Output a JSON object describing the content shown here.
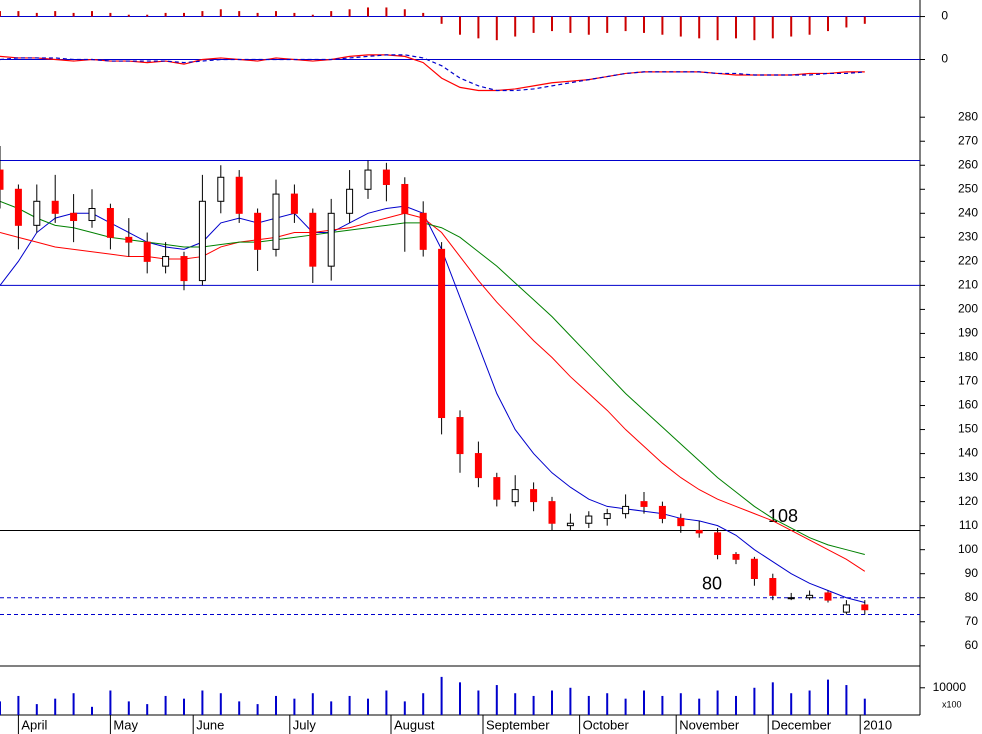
{
  "chart_data": [
    {
      "type": "bar",
      "color": "#cc0000",
      "zero_color": "#0000cc",
      "ylim": [
        -14,
        8
      ],
      "yticks": [
        0
      ],
      "values": [
        3,
        3,
        2,
        3,
        2,
        3,
        2,
        1,
        1,
        2,
        2,
        3,
        4,
        3,
        2,
        3,
        2,
        1,
        3,
        4,
        5,
        5,
        4,
        2,
        -4,
        -10,
        -12,
        -13,
        -11,
        -9,
        -8,
        -9,
        -10,
        -9,
        -8,
        -9,
        -10,
        -11,
        -12,
        -13,
        -12,
        -13,
        -12,
        -11,
        -10,
        -8,
        -6,
        -4
      ]
    },
    {
      "type": "line",
      "zero_color": "#0000cc",
      "ylim": [
        -30,
        10
      ],
      "yticks": [
        0
      ],
      "series": [
        {
          "color": "#ff0000",
          "dashed": false,
          "values": [
            2,
            1,
            1,
            0,
            -1,
            0,
            -1,
            -1,
            -2,
            -1,
            -3,
            0,
            1,
            0,
            -1,
            1,
            0,
            -1,
            0,
            2,
            3,
            3,
            2,
            -2,
            -12,
            -18,
            -20,
            -20,
            -19,
            -17,
            -15,
            -14,
            -13,
            -11,
            -9,
            -8,
            -8,
            -8,
            -8,
            -9,
            -10,
            -10,
            -10,
            -10,
            -9,
            -9,
            -8,
            -8
          ]
        },
        {
          "color": "#0000cc",
          "dashed": true,
          "values": [
            0,
            1,
            1,
            1,
            0,
            0,
            -1,
            -1,
            -1,
            -1,
            -2,
            -1,
            0,
            0,
            0,
            0,
            0,
            0,
            0,
            1,
            2,
            3,
            3,
            1,
            -4,
            -12,
            -17,
            -20,
            -20,
            -19,
            -17,
            -15,
            -13,
            -11,
            -9,
            -8,
            -8,
            -8,
            -8,
            -9,
            -9,
            -10,
            -10,
            -10,
            -10,
            -9,
            -9,
            -8
          ]
        }
      ]
    },
    {
      "type": "candlestick",
      "up_color": "#ffffff",
      "down_color": "#ff0000",
      "ylim": [
        52,
        283
      ],
      "yticks": [
        60,
        70,
        80,
        90,
        100,
        110,
        120,
        130,
        140,
        150,
        160,
        170,
        180,
        190,
        200,
        210,
        220,
        230,
        240,
        250,
        260,
        270,
        280
      ],
      "xlim": [
        0,
        200
      ],
      "xticks": [
        {
          "value": 4,
          "label": "April"
        },
        {
          "value": 24,
          "label": "May"
        },
        {
          "value": 42,
          "label": "June"
        },
        {
          "value": 63,
          "label": "July"
        },
        {
          "value": 85,
          "label": "August"
        },
        {
          "value": 105,
          "label": "September"
        },
        {
          "value": 126,
          "label": "October"
        },
        {
          "value": 147,
          "label": "November"
        },
        {
          "value": 167,
          "label": "December"
        },
        {
          "value": 187,
          "label": "2010"
        }
      ],
      "x": [
        0,
        4,
        8,
        12,
        16,
        20,
        24,
        28,
        32,
        36,
        40,
        44,
        48,
        52,
        56,
        60,
        64,
        68,
        72,
        76,
        80,
        84,
        88,
        92,
        96,
        100,
        104,
        108,
        112,
        116,
        120,
        124,
        128,
        132,
        136,
        140,
        144,
        148,
        152,
        156,
        160,
        164,
        168,
        172,
        176,
        180,
        184,
        188
      ],
      "open": [
        258,
        250,
        235,
        245,
        240,
        237,
        242,
        230,
        228,
        218,
        222,
        212,
        245,
        255,
        240,
        225,
        248,
        240,
        218,
        240,
        250,
        258,
        252,
        240,
        225,
        155,
        140,
        130,
        120,
        125,
        120,
        110,
        111,
        113,
        115,
        120,
        118,
        113,
        108,
        107,
        98,
        96,
        88,
        80,
        80,
        82,
        74,
        77
      ],
      "high": [
        268,
        252,
        252,
        256,
        248,
        250,
        244,
        238,
        232,
        228,
        224,
        256,
        260,
        258,
        242,
        254,
        252,
        242,
        246,
        258,
        262,
        261,
        255,
        245,
        228,
        158,
        145,
        132,
        131,
        128,
        122,
        115,
        116,
        117,
        123,
        124,
        120,
        115,
        112,
        109,
        99,
        97,
        90,
        82,
        83,
        83,
        79,
        79
      ],
      "low": [
        242,
        225,
        232,
        236,
        228,
        234,
        225,
        222,
        215,
        215,
        208,
        210,
        240,
        236,
        216,
        222,
        236,
        211,
        212,
        236,
        246,
        245,
        224,
        222,
        148,
        132,
        126,
        118,
        118,
        116,
        108,
        108,
        109,
        110,
        113,
        115,
        111,
        107,
        105,
        96,
        94,
        85,
        79,
        79,
        79,
        78,
        73,
        73
      ],
      "close": [
        250,
        235,
        245,
        240,
        237,
        242,
        230,
        228,
        220,
        222,
        212,
        245,
        255,
        240,
        225,
        248,
        240,
        218,
        240,
        250,
        258,
        252,
        240,
        225,
        155,
        140,
        130,
        121,
        125,
        120,
        111,
        111,
        114,
        115,
        118,
        118,
        113,
        110,
        107,
        98,
        96,
        88,
        81,
        80,
        81,
        79,
        77,
        75
      ],
      "averages": [
        {
          "color": "#0000cc",
          "values": [
            210,
            220,
            232,
            238,
            240,
            240,
            236,
            232,
            228,
            226,
            225,
            228,
            236,
            238,
            236,
            238,
            240,
            232,
            232,
            236,
            240,
            242,
            243,
            240,
            225,
            205,
            185,
            165,
            150,
            140,
            132,
            126,
            121,
            118,
            117,
            116,
            115,
            113,
            112,
            110,
            106,
            100,
            95,
            90,
            86,
            83,
            80,
            78
          ]
        },
        {
          "color": "#ff0000",
          "values": [
            232,
            230,
            228,
            226,
            225,
            224,
            223,
            222,
            222,
            221,
            221,
            222,
            226,
            228,
            229,
            230,
            232,
            232,
            233,
            234,
            236,
            238,
            240,
            238,
            232,
            222,
            212,
            203,
            195,
            187,
            180,
            172,
            165,
            158,
            150,
            143,
            136,
            130,
            125,
            121,
            118,
            115,
            112,
            108,
            104,
            100,
            96,
            91
          ]
        },
        {
          "color": "#008000",
          "values": [
            245,
            242,
            238,
            235,
            234,
            232,
            230,
            229,
            228,
            227,
            226,
            226,
            227,
            228,
            228,
            229,
            230,
            231,
            232,
            233,
            234,
            235,
            236,
            236,
            234,
            230,
            224,
            218,
            211,
            204,
            197,
            189,
            181,
            173,
            165,
            158,
            151,
            144,
            137,
            130,
            124,
            118,
            113,
            109,
            105,
            102,
            100,
            98
          ]
        }
      ],
      "levels": [
        {
          "value": 262,
          "color": "#0000cc",
          "dashed": false,
          "show_label": false
        },
        {
          "value": 210,
          "color": "#0000cc",
          "dashed": false,
          "show_label": false
        },
        {
          "value": 108,
          "color": "#000000",
          "dashed": false,
          "show_label": true
        },
        {
          "value": 80,
          "color": "#0000cc",
          "dashed": true,
          "show_label": true
        },
        {
          "value": 73,
          "color": "#0000cc",
          "dashed": true,
          "show_label": false
        }
      ],
      "level_label_color": "#0000cc"
    },
    {
      "type": "volume",
      "color": "#0000cc",
      "ylim": [
        0,
        18000
      ],
      "yticks": [
        10000
      ],
      "unit": "x100",
      "values": [
        5000,
        7000,
        4000,
        6000,
        8000,
        3000,
        9000,
        5000,
        4000,
        7000,
        6000,
        9000,
        8000,
        5000,
        4000,
        7000,
        6000,
        8000,
        5000,
        7000,
        6000,
        9000,
        5000,
        8000,
        14000,
        12000,
        9000,
        11000,
        8000,
        7000,
        9000,
        10000,
        7000,
        8000,
        6000,
        9000,
        7000,
        8000,
        6000,
        9000,
        7000,
        10000,
        12000,
        8000,
        9000,
        13000,
        11000,
        6000
      ]
    }
  ]
}
